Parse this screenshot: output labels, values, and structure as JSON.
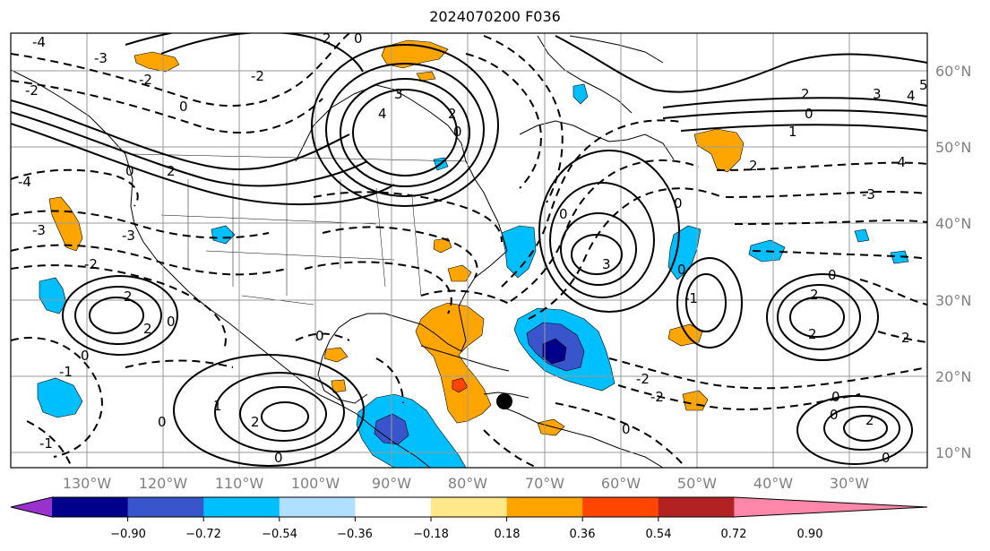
{
  "title": "2024070200 F036",
  "latitude_labels": [
    "60°N",
    "50°N",
    "40°N",
    "30°N",
    "20°N",
    "10°N"
  ],
  "longitude_labels": [
    "130°W",
    "120°W",
    "110°W",
    "100°W",
    "90°W",
    "80°W",
    "70°W",
    "60°W",
    "50°W",
    "40°W",
    "30°W"
  ],
  "colorbar": {
    "tick_labels": [
      "−0.90",
      "−0.72",
      "−0.54",
      "−0.36",
      "−0.18",
      "0.18",
      "0.36",
      "0.54",
      "0.72",
      "0.90"
    ],
    "colors": [
      "#9932cc",
      "#00008b",
      "#3955cc",
      "#00bfff",
      "#b0e0ff",
      "#ffffff",
      "#ffe88a",
      "#ffa500",
      "#ff4500",
      "#b22222",
      "#ff88aa"
    ]
  },
  "contour_labels": [
    "-4",
    "-3",
    "-2",
    "-1",
    "0",
    "1",
    "2",
    "3",
    "4",
    "5"
  ],
  "marker": "black-dot"
}
